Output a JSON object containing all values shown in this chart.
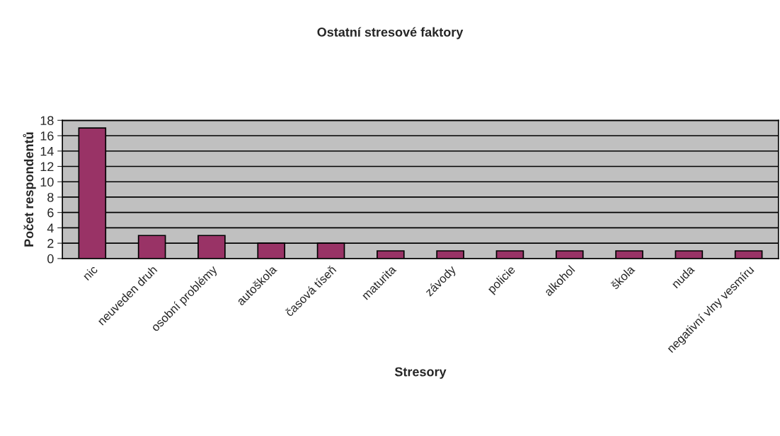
{
  "chart_data": {
    "type": "bar",
    "title": "Ostatní stresové faktory",
    "xlabel": "Stresory",
    "ylabel": "Počet respondentů",
    "categories": [
      "nic",
      "neuveden druh",
      "osobní problémy",
      "autoškola",
      "časová tíseň",
      "maturita",
      "závody",
      "policie",
      "alkohol",
      "škola",
      "nuda",
      "negativní vlny vesmíru"
    ],
    "values": [
      17,
      3,
      3,
      2,
      2,
      1,
      1,
      1,
      1,
      1,
      1,
      1
    ],
    "color": "#993366",
    "ylim": [
      0,
      18
    ],
    "yticks": [
      0,
      2,
      4,
      6,
      8,
      10,
      12,
      14,
      16,
      18
    ],
    "grid": "y",
    "legend": false
  }
}
